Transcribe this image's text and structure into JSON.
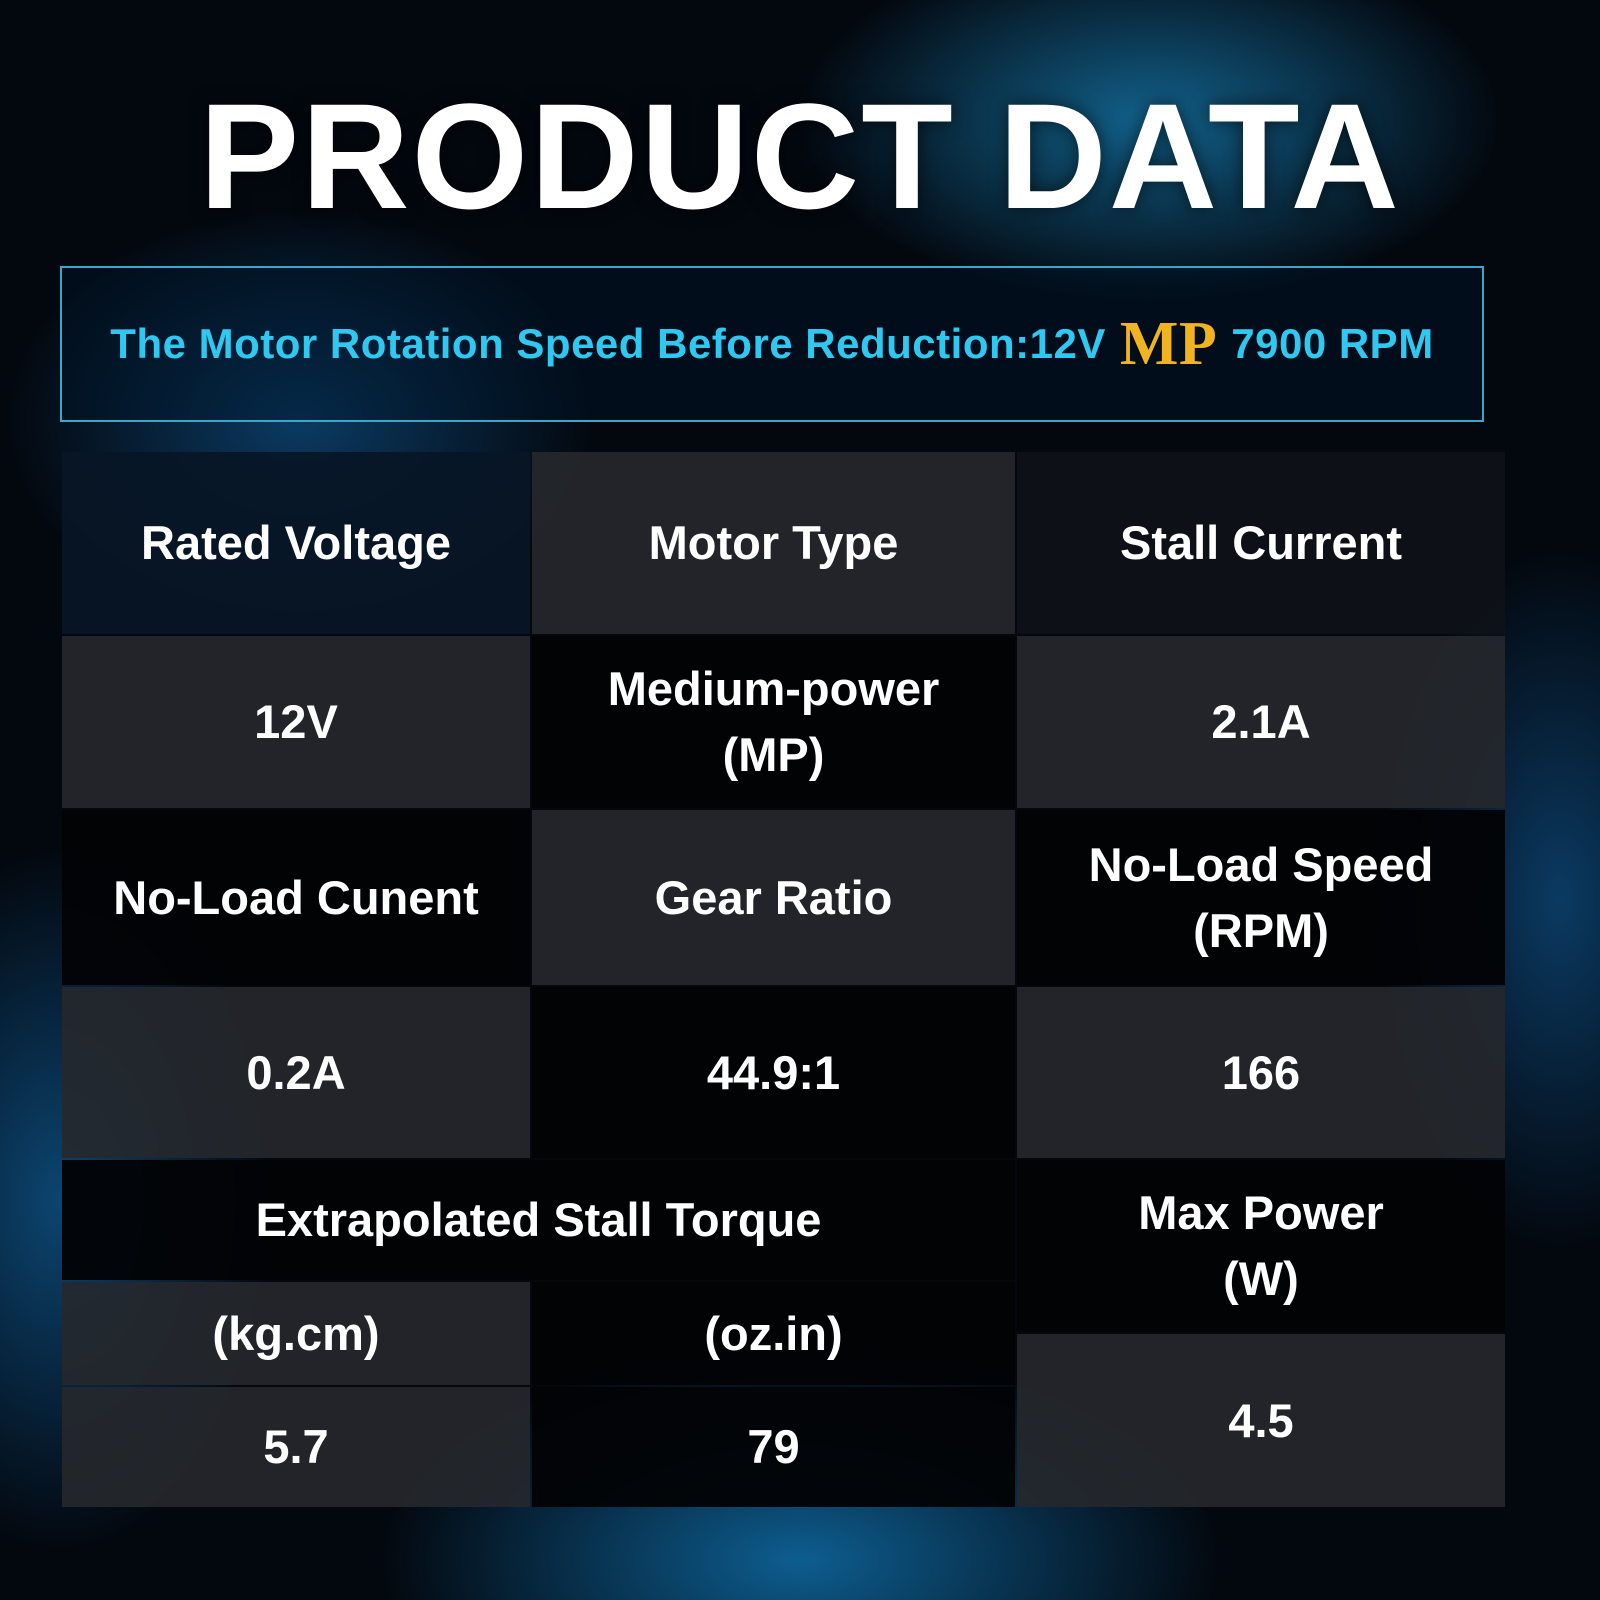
{
  "title": "PRODUCT DATA",
  "banner": {
    "text_before": "The Motor Rotation Speed Before Reduction:12V",
    "highlight": "MP",
    "text_after": "7900 RPM"
  },
  "table": {
    "cells": [
      [
        "Rated Voltage"
      ],
      [
        "Motor Type"
      ],
      [
        "Stall Current"
      ],
      [
        "12V"
      ],
      [
        "Medium-power",
        "(MP)"
      ],
      [
        "2.1A"
      ],
      [
        "No-Load Cunent"
      ],
      [
        "Gear Ratio"
      ],
      [
        "No-Load Speed",
        "(RPM)"
      ],
      [
        "0.2A"
      ],
      [
        "44.9:1"
      ],
      [
        "166"
      ],
      [
        "Extrapolated Stall Torque"
      ],
      [
        "(kg.cm)"
      ],
      [
        "(oz.in)"
      ],
      [
        "5.7"
      ],
      [
        "79"
      ],
      [
        "Max Power",
        "(W)"
      ],
      [
        "4.5"
      ]
    ]
  }
}
